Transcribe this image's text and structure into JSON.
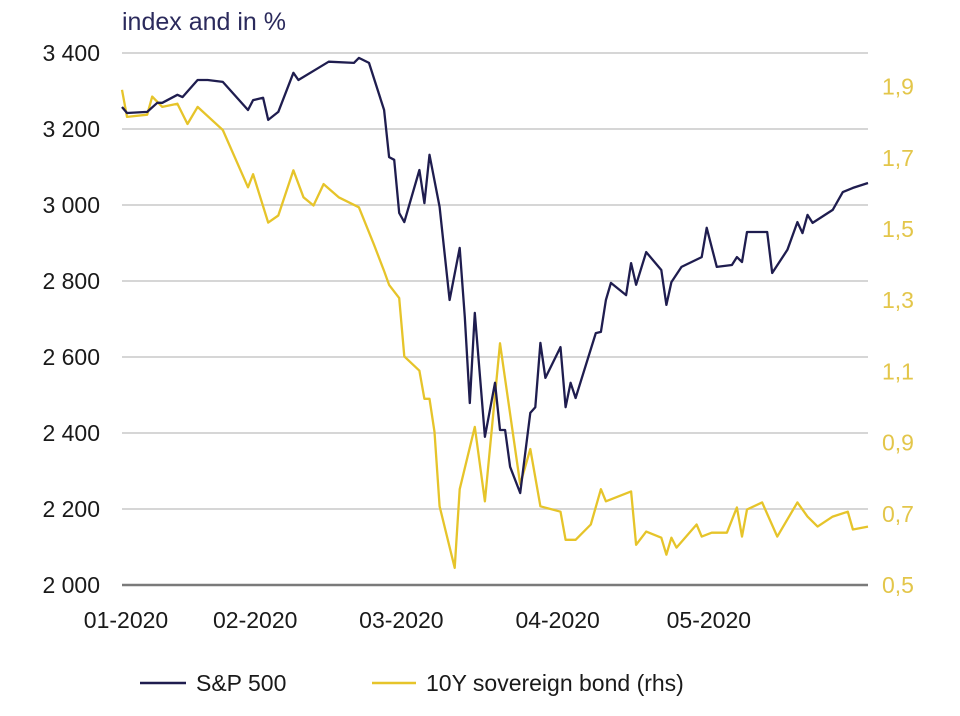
{
  "chart_data": {
    "type": "line",
    "title": "index and in %",
    "xlabel": "",
    "ylabel": "",
    "x_tick_labels": [
      "01-2020",
      "02-2020",
      "03-2020",
      "04-2020",
      "05-2020"
    ],
    "x_tick_dates": [
      "2020-01-02",
      "2020-02-01",
      "2020-03-01",
      "2020-04-01",
      "2020-05-01"
    ],
    "xlim": [
      "2020-01-02",
      "2020-05-29"
    ],
    "ylim_left": [
      2000,
      3400
    ],
    "ylim_right": [
      0.5,
      2.0
    ],
    "left_ticks": [
      2000,
      2200,
      2400,
      2600,
      2800,
      3000,
      3200,
      3400
    ],
    "left_tick_labels": [
      "2 000",
      "2 200",
      "2 400",
      "2 600",
      "2 800",
      "3 000",
      "3 200",
      "3 400"
    ],
    "right_ticks": [
      0.5,
      0.7,
      0.9,
      1.1,
      1.3,
      1.5,
      1.7,
      1.9
    ],
    "right_tick_labels": [
      "0,5",
      "0,7",
      "0,9",
      "1,1",
      "1,3",
      "1,5",
      "1,7",
      "1,9"
    ],
    "grid": true,
    "legend_position": "bottom",
    "series": [
      {
        "name": "S&P 500",
        "axis": "left",
        "color": "#1f1d4f",
        "points": [
          [
            "2020-01-02",
            3258
          ],
          [
            "2020-01-03",
            3242
          ],
          [
            "2020-01-07",
            3245
          ],
          [
            "2020-01-09",
            3269
          ],
          [
            "2020-01-10",
            3269
          ],
          [
            "2020-01-13",
            3290
          ],
          [
            "2020-01-14",
            3284
          ],
          [
            "2020-01-17",
            3329
          ],
          [
            "2020-01-19",
            3329
          ],
          [
            "2020-01-22",
            3324
          ],
          [
            "2020-01-27",
            3250
          ],
          [
            "2020-01-28",
            3276
          ],
          [
            "2020-01-30",
            3282
          ],
          [
            "2020-01-31",
            3224
          ],
          [
            "2020-02-02",
            3245
          ],
          [
            "2020-02-05",
            3348
          ],
          [
            "2020-02-06",
            3329
          ],
          [
            "2020-02-10",
            3361
          ],
          [
            "2020-02-12",
            3377
          ],
          [
            "2020-02-17",
            3374
          ],
          [
            "2020-02-18",
            3387
          ],
          [
            "2020-02-20",
            3374
          ],
          [
            "2020-02-23",
            3250
          ],
          [
            "2020-02-24",
            3126
          ],
          [
            "2020-02-25",
            3119
          ],
          [
            "2020-02-26",
            2979
          ],
          [
            "2020-02-27",
            2955
          ],
          [
            "2020-03-01",
            3092
          ],
          [
            "2020-03-02",
            3005
          ],
          [
            "2020-03-03",
            3132
          ],
          [
            "2020-03-05",
            2995
          ],
          [
            "2020-03-07",
            2750
          ],
          [
            "2020-03-09",
            2887
          ],
          [
            "2020-03-10",
            2705
          ],
          [
            "2020-03-11",
            2479
          ],
          [
            "2020-03-12",
            2716
          ],
          [
            "2020-03-14",
            2390
          ],
          [
            "2020-03-16",
            2532
          ],
          [
            "2020-03-17",
            2408
          ],
          [
            "2020-03-18",
            2408
          ],
          [
            "2020-03-19",
            2311
          ],
          [
            "2020-03-21",
            2242
          ],
          [
            "2020-03-23",
            2453
          ],
          [
            "2020-03-24",
            2468
          ],
          [
            "2020-03-25",
            2637
          ],
          [
            "2020-03-26",
            2545
          ],
          [
            "2020-03-29",
            2626
          ],
          [
            "2020-03-30",
            2468
          ],
          [
            "2020-03-31",
            2532
          ],
          [
            "2020-04-01",
            2492
          ],
          [
            "2020-04-05",
            2663
          ],
          [
            "2020-04-06",
            2666
          ],
          [
            "2020-04-07",
            2750
          ],
          [
            "2020-04-08",
            2795
          ],
          [
            "2020-04-11",
            2763
          ],
          [
            "2020-04-12",
            2847
          ],
          [
            "2020-04-13",
            2790
          ],
          [
            "2020-04-15",
            2876
          ],
          [
            "2020-04-18",
            2829
          ],
          [
            "2020-04-19",
            2737
          ],
          [
            "2020-04-20",
            2797
          ],
          [
            "2020-04-22",
            2837
          ],
          [
            "2020-04-26",
            2863
          ],
          [
            "2020-04-27",
            2940
          ],
          [
            "2020-04-29",
            2837
          ],
          [
            "2020-05-02",
            2842
          ],
          [
            "2020-05-03",
            2863
          ],
          [
            "2020-05-04",
            2850
          ],
          [
            "2020-05-05",
            2929
          ],
          [
            "2020-05-09",
            2929
          ],
          [
            "2020-05-10",
            2821
          ],
          [
            "2020-05-13",
            2882
          ],
          [
            "2020-05-15",
            2955
          ],
          [
            "2020-05-16",
            2926
          ],
          [
            "2020-05-17",
            2974
          ],
          [
            "2020-05-18",
            2953
          ],
          [
            "2020-05-22",
            2987
          ],
          [
            "2020-05-24",
            3034
          ],
          [
            "2020-05-26",
            3045
          ],
          [
            "2020-05-29",
            3058
          ]
        ]
      },
      {
        "name": "10Y sovereign bond (rhs)",
        "axis": "right",
        "color": "#e6c42a",
        "points": [
          [
            "2020-01-02",
            1.891
          ],
          [
            "2020-01-03",
            1.815
          ],
          [
            "2020-01-07",
            1.821
          ],
          [
            "2020-01-08",
            1.872
          ],
          [
            "2020-01-10",
            1.843
          ],
          [
            "2020-01-13",
            1.852
          ],
          [
            "2020-01-15",
            1.795
          ],
          [
            "2020-01-17",
            1.843
          ],
          [
            "2020-01-22",
            1.778
          ],
          [
            "2020-01-27",
            1.617
          ],
          [
            "2020-01-28",
            1.654
          ],
          [
            "2020-01-31",
            1.518
          ],
          [
            "2020-02-02",
            1.538
          ],
          [
            "2020-02-05",
            1.665
          ],
          [
            "2020-02-07",
            1.589
          ],
          [
            "2020-02-09",
            1.566
          ],
          [
            "2020-02-11",
            1.626
          ],
          [
            "2020-02-14",
            1.589
          ],
          [
            "2020-02-18",
            1.561
          ],
          [
            "2020-02-21",
            1.456
          ],
          [
            "2020-02-23",
            1.382
          ],
          [
            "2020-02-24",
            1.343
          ],
          [
            "2020-02-26",
            1.306
          ],
          [
            "2020-02-27",
            1.142
          ],
          [
            "2020-03-01",
            1.102
          ],
          [
            "2020-03-02",
            1.023
          ],
          [
            "2020-03-03",
            1.023
          ],
          [
            "2020-03-04",
            0.93
          ],
          [
            "2020-03-05",
            0.721
          ],
          [
            "2020-03-08",
            0.548
          ],
          [
            "2020-03-09",
            0.769
          ],
          [
            "2020-03-12",
            0.944
          ],
          [
            "2020-03-14",
            0.735
          ],
          [
            "2020-03-17",
            1.179
          ],
          [
            "2020-03-21",
            0.783
          ],
          [
            "2020-03-23",
            0.882
          ],
          [
            "2020-03-25",
            0.721
          ],
          [
            "2020-03-29",
            0.706
          ],
          [
            "2020-03-30",
            0.627
          ],
          [
            "2020-04-01",
            0.627
          ],
          [
            "2020-04-04",
            0.67
          ],
          [
            "2020-04-06",
            0.769
          ],
          [
            "2020-04-07",
            0.735
          ],
          [
            "2020-04-12",
            0.763
          ],
          [
            "2020-04-13",
            0.613
          ],
          [
            "2020-04-15",
            0.65
          ],
          [
            "2020-04-18",
            0.633
          ],
          [
            "2020-04-19",
            0.585
          ],
          [
            "2020-04-20",
            0.633
          ],
          [
            "2020-04-21",
            0.605
          ],
          [
            "2020-04-25",
            0.67
          ],
          [
            "2020-04-26",
            0.636
          ],
          [
            "2020-04-28",
            0.647
          ],
          [
            "2020-05-01",
            0.647
          ],
          [
            "2020-05-03",
            0.718
          ],
          [
            "2020-05-04",
            0.636
          ],
          [
            "2020-05-05",
            0.712
          ],
          [
            "2020-05-08",
            0.732
          ],
          [
            "2020-05-11",
            0.636
          ],
          [
            "2020-05-15",
            0.732
          ],
          [
            "2020-05-17",
            0.692
          ],
          [
            "2020-05-19",
            0.664
          ],
          [
            "2020-05-22",
            0.692
          ],
          [
            "2020-05-25",
            0.706
          ],
          [
            "2020-05-26",
            0.656
          ],
          [
            "2020-05-29",
            0.664
          ]
        ]
      }
    ]
  },
  "colors": {
    "grid": "#c8c8c8",
    "axis": "#7a7a7a",
    "right_tick": "#e3c64a",
    "title": "#2b2a5c"
  }
}
